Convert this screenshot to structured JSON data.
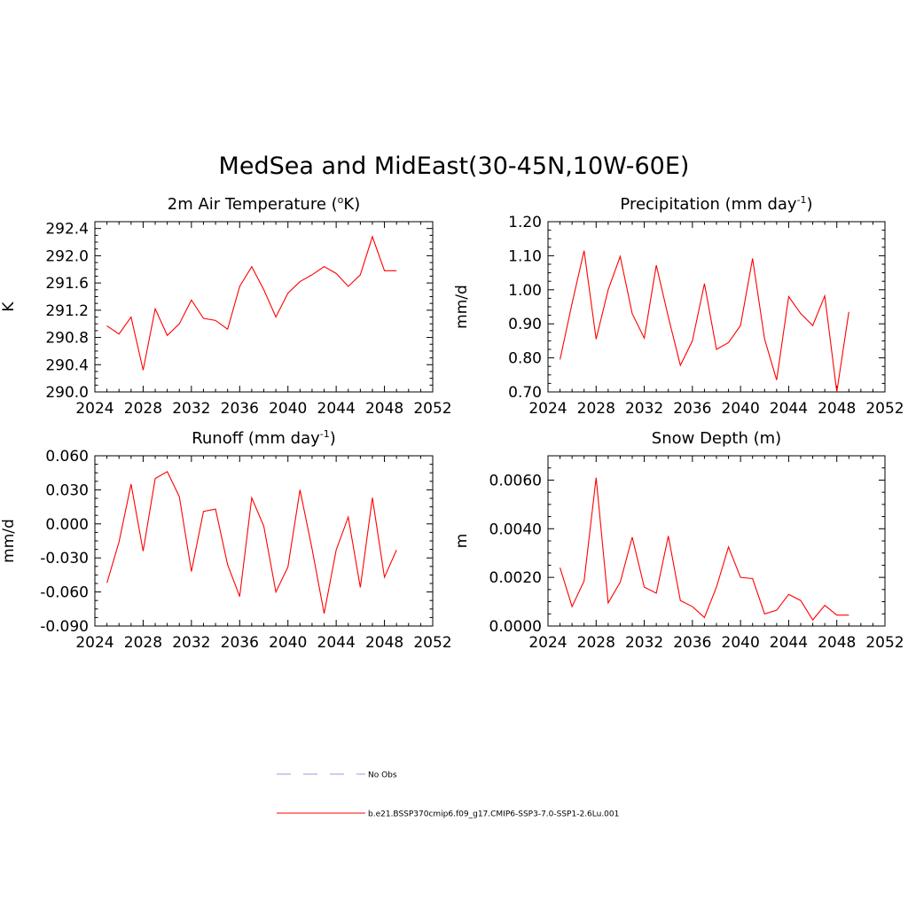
{
  "figure": {
    "title": "MedSea and MidEast(30-45N,10W-60E)"
  },
  "chart_data": [
    {
      "id": "air_temp",
      "type": "line",
      "title": "2m Air Temperature (",
      "title_sup": "o",
      "title_suffix": "K)",
      "ylabel": "K",
      "xlabel": "",
      "xlim": [
        2024,
        2052
      ],
      "ylim": [
        290.0,
        292.5
      ],
      "xticks": [
        "2024",
        "2028",
        "2032",
        "2036",
        "2040",
        "2044",
        "2048",
        "2052"
      ],
      "yticks": [
        "290.0",
        "290.4",
        "290.8",
        "291.2",
        "291.6",
        "292.0",
        "292.4"
      ],
      "grid": false,
      "x": [
        2025,
        2026,
        2027,
        2028,
        2029,
        2030,
        2031,
        2032,
        2033,
        2034,
        2035,
        2036,
        2037,
        2038,
        2039,
        2040,
        2041,
        2042,
        2043,
        2044,
        2045,
        2046,
        2047,
        2048,
        2049
      ],
      "series": [
        {
          "name": "b.e21.BSSP370cmip6.f09_g17.CMIP6-SSP3-7.0-SSP1-2.6Lu.001",
          "color": "#ff0000",
          "values": [
            290.97,
            290.85,
            291.1,
            290.32,
            291.22,
            290.83,
            291.0,
            291.35,
            291.08,
            291.05,
            290.92,
            291.55,
            291.84,
            291.5,
            291.1,
            291.45,
            291.62,
            291.72,
            291.84,
            291.74,
            291.55,
            291.72,
            292.28,
            291.78,
            291.78
          ]
        }
      ]
    },
    {
      "id": "precip",
      "type": "line",
      "title": "Precipitation (mm day",
      "title_sup": "-1",
      "title_suffix": ")",
      "ylabel": "mm/d",
      "xlabel": "",
      "xlim": [
        2024,
        2052
      ],
      "ylim": [
        0.7,
        1.2
      ],
      "xticks": [
        "2024",
        "2028",
        "2032",
        "2036",
        "2040",
        "2044",
        "2048",
        "2052"
      ],
      "yticks": [
        "0.70",
        "0.80",
        "0.90",
        "1.00",
        "1.10",
        "1.20"
      ],
      "grid": false,
      "x": [
        2025,
        2026,
        2027,
        2028,
        2029,
        2030,
        2031,
        2032,
        2033,
        2034,
        2035,
        2036,
        2037,
        2038,
        2039,
        2040,
        2041,
        2042,
        2043,
        2044,
        2045,
        2046,
        2047,
        2048,
        2049
      ],
      "series": [
        {
          "name": "b.e21.BSSP370cmip6.f09_g17.CMIP6-SSP3-7.0-SSP1-2.6Lu.001",
          "color": "#ff0000",
          "values": [
            0.795,
            0.96,
            1.115,
            0.855,
            1.0,
            1.098,
            0.93,
            0.858,
            1.072,
            0.92,
            0.778,
            0.85,
            1.018,
            0.825,
            0.845,
            0.895,
            1.092,
            0.855,
            0.735,
            0.98,
            0.93,
            0.895,
            0.982,
            0.7,
            0.935
          ]
        }
      ]
    },
    {
      "id": "runoff",
      "type": "line",
      "title": "Runoff (mm day",
      "title_sup": "-1",
      "title_suffix": ")",
      "ylabel": "mm/d",
      "xlabel": "",
      "xlim": [
        2024,
        2052
      ],
      "ylim": [
        -0.09,
        0.06
      ],
      "xticks": [
        "2024",
        "2028",
        "2032",
        "2036",
        "2040",
        "2044",
        "2048",
        "2052"
      ],
      "yticks": [
        "-0.090",
        "-0.060",
        "-0.030",
        "0.000",
        "0.030",
        "0.060"
      ],
      "grid": false,
      "x": [
        2025,
        2026,
        2027,
        2028,
        2029,
        2030,
        2031,
        2032,
        2033,
        2034,
        2035,
        2036,
        2037,
        2038,
        2039,
        2040,
        2041,
        2042,
        2043,
        2044,
        2045,
        2046,
        2047,
        2048,
        2049
      ],
      "series": [
        {
          "name": "b.e21.BSSP370cmip6.f09_g17.CMIP6-SSP3-7.0-SSP1-2.6Lu.001",
          "color": "#ff0000",
          "values": [
            -0.052,
            -0.016,
            0.035,
            -0.024,
            0.04,
            0.046,
            0.024,
            -0.042,
            0.011,
            0.013,
            -0.036,
            -0.064,
            0.023,
            -0.002,
            -0.06,
            -0.038,
            0.03,
            -0.022,
            -0.079,
            -0.023,
            0.006,
            -0.056,
            0.023,
            -0.047,
            -0.023
          ]
        }
      ]
    },
    {
      "id": "snow_depth",
      "type": "line",
      "title": "Snow Depth (m)",
      "title_sup": "",
      "title_suffix": "",
      "ylabel": "m",
      "xlabel": "",
      "xlim": [
        2024,
        2052
      ],
      "ylim": [
        0.0,
        0.007
      ],
      "xticks": [
        "2024",
        "2028",
        "2032",
        "2036",
        "2040",
        "2044",
        "2048",
        "2052"
      ],
      "yticks": [
        "0.0000",
        "0.0020",
        "0.0040",
        "0.0060"
      ],
      "grid": false,
      "x": [
        2025,
        2026,
        2027,
        2028,
        2029,
        2030,
        2031,
        2032,
        2033,
        2034,
        2035,
        2036,
        2037,
        2038,
        2039,
        2040,
        2041,
        2042,
        2043,
        2044,
        2045,
        2046,
        2047,
        2048,
        2049
      ],
      "series": [
        {
          "name": "b.e21.BSSP370cmip6.f09_g17.CMIP6-SSP3-7.0-SSP1-2.6Lu.001",
          "color": "#ff0000",
          "values": [
            0.0024,
            0.0008,
            0.00185,
            0.0061,
            0.00095,
            0.0018,
            0.00365,
            0.0016,
            0.00135,
            0.0037,
            0.00105,
            0.0008,
            0.00035,
            0.0016,
            0.00325,
            0.002,
            0.00195,
            0.0005,
            0.00065,
            0.0013,
            0.00105,
            0.00025,
            0.00085,
            0.00045,
            0.00045
          ]
        }
      ]
    }
  ],
  "legend": {
    "placement": "bottom-center",
    "entries": [
      {
        "label": "No Obs",
        "color": "#9999dd",
        "style": "dashed"
      },
      {
        "label": "b.e21.BSSP370cmip6.f09_g17.CMIP6-SSP3-7.0-SSP1-2.6Lu.001",
        "color": "#ff0000",
        "style": "solid"
      }
    ]
  }
}
